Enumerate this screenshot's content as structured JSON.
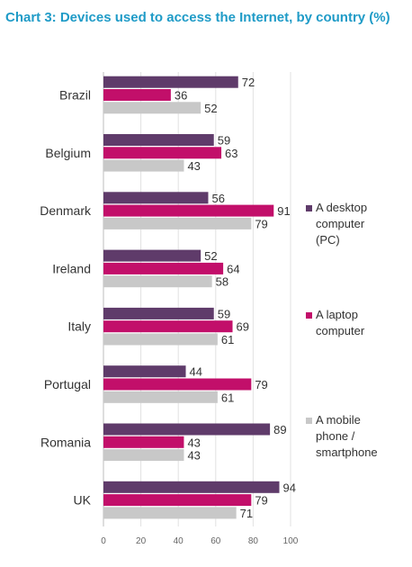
{
  "title": "Chart 3: Devices used to access the Internet, by country (%)",
  "chart_data": {
    "type": "bar",
    "orientation": "horizontal",
    "title": "Chart 3: Devices used to access the Internet, by country (%)",
    "categories": [
      "Brazil",
      "Belgium",
      "Denmark",
      "Ireland",
      "Italy",
      "Portugal",
      "Romania",
      "UK"
    ],
    "series": [
      {
        "name": "A desktop computer (PC)",
        "values": [
          72,
          59,
          56,
          52,
          59,
          44,
          89,
          94
        ],
        "color": "#5f3b6a"
      },
      {
        "name": "A laptop computer",
        "values": [
          36,
          63,
          91,
          64,
          69,
          79,
          43,
          79
        ],
        "color": "#c20f6a"
      },
      {
        "name": "A mobile phone / smartphone",
        "values": [
          52,
          43,
          79,
          58,
          61,
          61,
          43,
          71
        ],
        "color": "#c8c8c8"
      }
    ],
    "xlim": [
      0,
      100
    ],
    "xticks": [
      0,
      20,
      40,
      60,
      80,
      100
    ],
    "grid": true,
    "legend_position": "right"
  },
  "legend": [
    {
      "label": "A desktop\ncomputer\n(PC)",
      "color": "#5f3b6a"
    },
    {
      "label": "A laptop\ncomputer",
      "color": "#c20f6a"
    },
    {
      "label": "A mobile\nphone /\nsmartphone",
      "color": "#c8c8c8"
    }
  ]
}
